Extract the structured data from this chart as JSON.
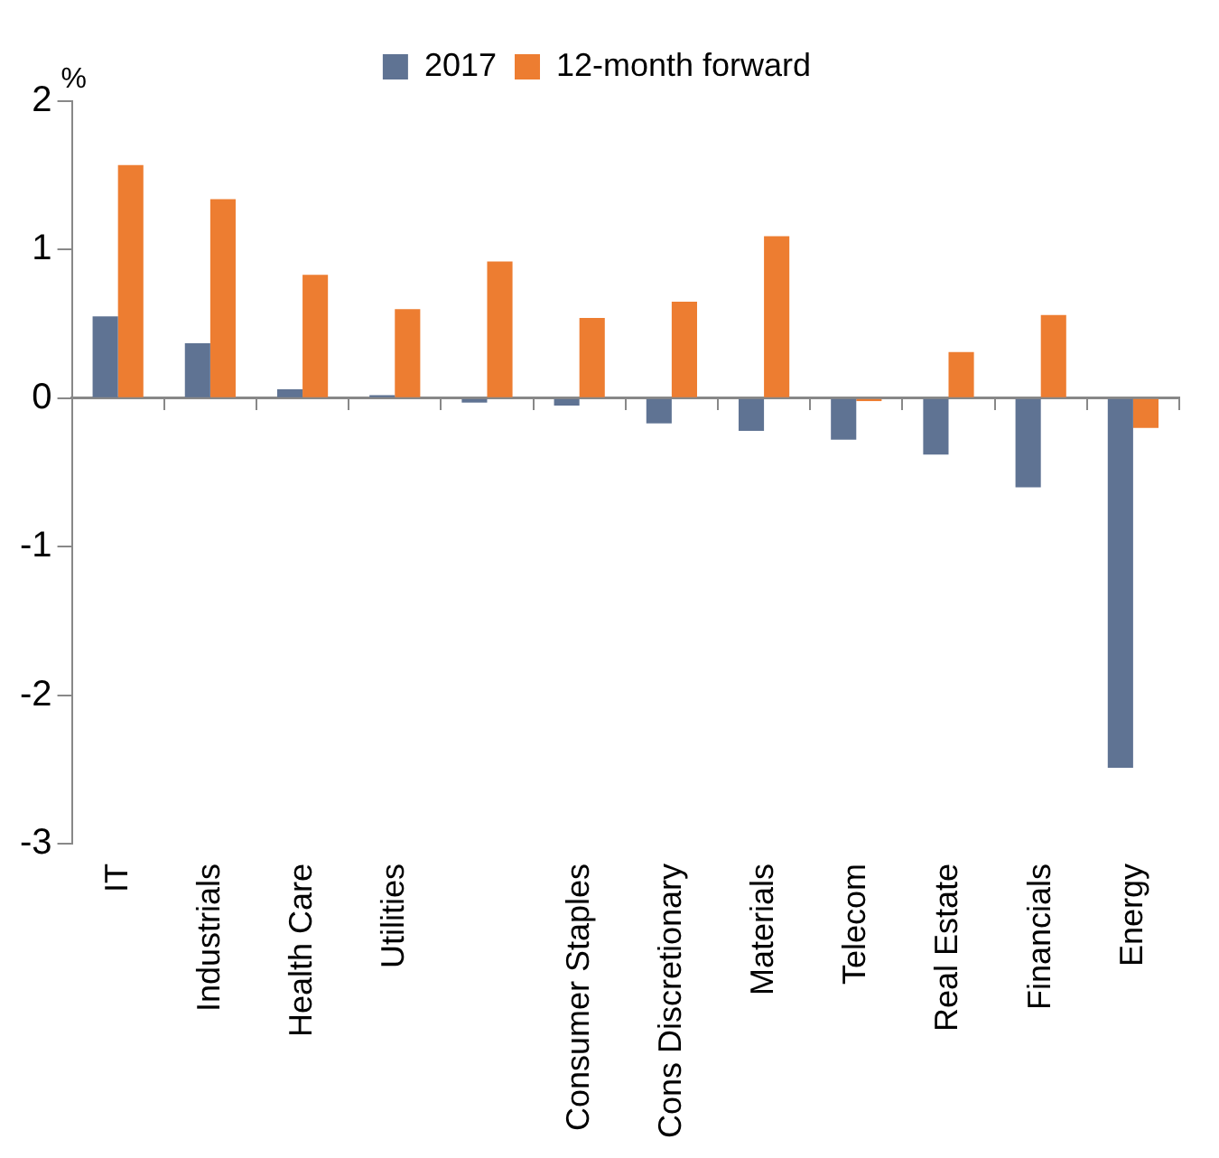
{
  "chart_data": {
    "type": "bar",
    "ylabel": "%",
    "categories": [
      "IT",
      "Industrials",
      "Health Care",
      "Utilities",
      null,
      "Consumer Staples",
      "Cons Discretionary",
      "Materials",
      "Telecom",
      "Real Estate",
      "Financials",
      "Energy"
    ],
    "series": [
      {
        "name": "2017",
        "color": "#5f7393",
        "values": [
          0.55,
          0.37,
          0.06,
          0.02,
          -0.03,
          -0.05,
          -0.17,
          -0.22,
          -0.28,
          -0.38,
          -0.6,
          -2.49
        ]
      },
      {
        "name": "12-month forward",
        "color": "#ed7d31",
        "values": [
          1.57,
          1.34,
          0.83,
          0.6,
          0.92,
          0.54,
          0.65,
          1.09,
          -0.02,
          0.31,
          0.56,
          -0.2
        ]
      }
    ],
    "ylim": [
      -3,
      2
    ],
    "yticks": [
      -3,
      -2,
      -1,
      0,
      1,
      2
    ],
    "legend": "top"
  }
}
